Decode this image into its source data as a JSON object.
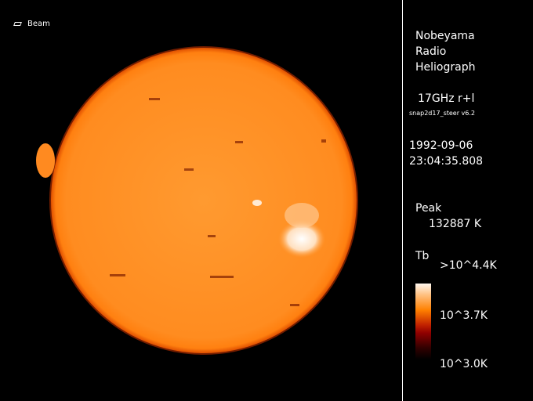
{
  "beam_label": "Beam",
  "title": [
    "Nobeyama",
    "Radio",
    "Heliograph"
  ],
  "frequency": "17GHz r+l",
  "software": "snap2d17_steer v6.2",
  "date": "1992-09-06",
  "time": "23:04:35.808",
  "peak_label": "Peak",
  "peak_value": "132887 K",
  "colorbar": {
    "label": "Tb",
    "top": ">10^4.4K",
    "mid": "10^3.7K",
    "bottom": "10^3.0K"
  },
  "colors": {
    "disk": "#ff8a1a",
    "limb": "#ff7000",
    "bright": "#ffffff"
  }
}
